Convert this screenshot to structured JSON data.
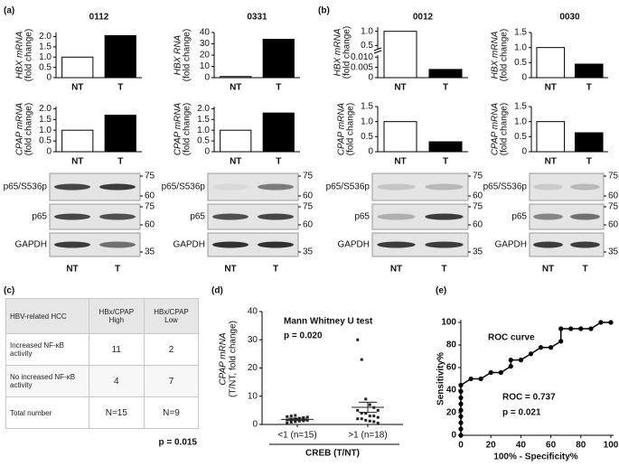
{
  "panels": [
    "(a)",
    "(b)",
    "(c)",
    "(d)",
    "(e)"
  ],
  "chart_data": [
    {
      "type": "bar",
      "title": "0112",
      "ylabel": [
        "HBX mRNA",
        "(fold change)"
      ],
      "categories": [
        "NT",
        "T"
      ],
      "values": [
        1,
        2.05
      ],
      "colors": [
        "#ffffff",
        "#000000"
      ],
      "ylim": [
        0,
        2.2
      ],
      "yticks": [
        0,
        0.5,
        {
          "value": 1,
          "label": "1.0"
        },
        1.5,
        {
          "value": 2,
          "label": "2.0"
        }
      ]
    },
    {
      "type": "bar",
      "title": "0331",
      "ylabel": [
        "HBX RNA",
        "(fold change)"
      ],
      "categories": [
        "NT",
        "T"
      ],
      "values": [
        1,
        34
      ],
      "colors": [
        "#ffffff",
        "#000000"
      ],
      "ylim": [
        0,
        40
      ],
      "yticks": [
        0,
        10,
        20,
        30,
        40
      ]
    },
    {
      "type": "bar",
      "ylabel": [
        "CPAP mRNA",
        "(fold change)"
      ],
      "categories": [
        "NT",
        "T"
      ],
      "values": [
        1,
        1.7
      ],
      "colors": [
        "#ffffff",
        "#000000"
      ],
      "ylim": [
        0,
        2.1
      ],
      "yticks": [
        0,
        0.5,
        {
          "value": 1,
          "label": "1.0"
        },
        1.5,
        {
          "value": 2,
          "label": "2.0"
        }
      ]
    },
    {
      "type": "bar",
      "ylabel": [
        "CPAP mRNA",
        "(fold change)"
      ],
      "categories": [
        "NT",
        "T"
      ],
      "values": [
        1,
        1.8
      ],
      "colors": [
        "#ffffff",
        "#000000"
      ],
      "ylim": [
        0,
        2.1
      ],
      "yticks": [
        0,
        0.5,
        {
          "value": 1,
          "label": "1.0"
        },
        1.5,
        {
          "value": 2,
          "label": "2.0"
        }
      ]
    },
    {
      "type": "bar",
      "title": "0012",
      "ylabel": [
        "HBX mRNA",
        "(fold change)"
      ],
      "categories": [
        "NT",
        "T"
      ],
      "values": [
        1,
        0.004
      ],
      "colors": [
        "#ffffff",
        "#000000"
      ],
      "segments": [
        {
          "ylim": [
            0,
            0.011
          ],
          "yticks": [
            0,
            0.005,
            {
              "value": 0.01,
              "label": "0.010"
            }
          ]
        },
        {
          "ylim": [
            0.35,
            1.15
          ],
          "yticks": [
            0.5,
            {
              "value": 1,
              "label": "1.0"
            }
          ]
        }
      ]
    },
    {
      "type": "bar",
      "title": "0030",
      "ylabel": [
        "HBX mRNA",
        "(fold change)"
      ],
      "categories": [
        "NT",
        "T"
      ],
      "values": [
        1,
        0.45
      ],
      "colors": [
        "#ffffff",
        "#000000"
      ],
      "ylim": [
        0,
        1.5
      ],
      "yticks": [
        0,
        0.5,
        {
          "value": 1,
          "label": "1.0"
        },
        1.5
      ]
    },
    {
      "type": "bar",
      "ylabel": [
        "CPAP mRNA",
        "(fold change)"
      ],
      "categories": [
        "NT",
        "T"
      ],
      "values": [
        1,
        0.33
      ],
      "colors": [
        "#ffffff",
        "#000000"
      ],
      "ylim": [
        0,
        1.5
      ],
      "yticks": [
        0,
        0.5,
        {
          "value": 1,
          "label": "1.0"
        },
        1.5
      ]
    },
    {
      "type": "bar",
      "ylabel": [
        "CPAP mRNA",
        "(fold change)"
      ],
      "categories": [
        "NT",
        "T"
      ],
      "values": [
        1,
        0.63
      ],
      "colors": [
        "#ffffff",
        "#000000"
      ],
      "ylim": [
        0,
        1.5
      ],
      "yticks": [
        0,
        0.5,
        {
          "value": 1,
          "label": "1.0"
        },
        1.5
      ]
    },
    {
      "type": "dotplot",
      "annotations": [
        "Mann Whitney U test",
        "p = 0.020"
      ],
      "ylabel": [
        "CPAP mRNA",
        "(T/NT, fold change)"
      ],
      "xlabel": "CREB (T/NT)",
      "categories": [
        "<1 (n=15)",
        ">1 (n=18)"
      ],
      "groups": [
        [
          0.5,
          0.8,
          1.0,
          1.2,
          1.3,
          1.5,
          1.6,
          1.8,
          2.0,
          2.2,
          2.4,
          2.6,
          2.8,
          3.0,
          3.2
        ],
        [
          30,
          23,
          9,
          7,
          6,
          5,
          5,
          4,
          4,
          3,
          3,
          2.5,
          2,
          2,
          1.5,
          1.2,
          1,
          0.5
        ]
      ],
      "means": [
        1.8,
        6.1
      ],
      "errors": [
        0.4,
        1.8
      ],
      "color": "#222222",
      "ylim": [
        0,
        40
      ],
      "yticks": [
        0,
        10,
        20,
        30,
        40
      ]
    },
    {
      "type": "line",
      "title": "ROC curve",
      "annotations": [
        "ROC = 0.737",
        "p = 0.021"
      ],
      "xlabel": "100% - Specificity%",
      "ylabel": "Sensitivity%",
      "x": [
        0,
        0,
        0,
        0,
        0,
        0,
        0,
        0,
        0,
        6.7,
        13.3,
        20,
        26.7,
        33.3,
        33.3,
        40,
        46.7,
        53.3,
        60,
        66.7,
        66.7,
        73.3,
        80,
        86.7,
        93.3,
        100
      ],
      "y": [
        0,
        5.6,
        11.1,
        16.7,
        22.2,
        27.8,
        33.3,
        38.9,
        44.4,
        50,
        50,
        55.6,
        55.6,
        61.1,
        66.7,
        66.7,
        72.2,
        77.8,
        77.8,
        83.3,
        94.4,
        94.4,
        94.4,
        94.4,
        100,
        100
      ],
      "color": "#000000",
      "xlim": [
        0,
        100
      ],
      "ylim": [
        0,
        100
      ],
      "xticks": [
        0,
        20,
        40,
        60,
        80,
        100
      ],
      "yticks": [
        0,
        20,
        40,
        60,
        80,
        100
      ]
    }
  ],
  "blots": [
    {
      "rows": [
        {
          "label": "p65/S536p",
          "markers": [
            "75",
            "60"
          ]
        },
        {
          "label": "p65",
          "markers": [
            "75",
            "60"
          ]
        },
        {
          "label": "GAPDH",
          "markers": [
            "35"
          ]
        }
      ],
      "lanes": [
        "NT",
        "T"
      ]
    },
    {
      "rows": [
        {
          "label": "p65/S536p",
          "markers": [
            "75",
            "60"
          ]
        },
        {
          "label": "p65",
          "markers": [
            "75",
            "60"
          ]
        },
        {
          "label": "GAPDH",
          "markers": [
            "35"
          ]
        }
      ],
      "lanes": [
        "NT",
        "T"
      ]
    },
    {
      "rows": [
        {
          "label": "p65/S536p",
          "markers": [
            "75",
            "60"
          ]
        },
        {
          "label": "p65",
          "markers": [
            "75",
            "60"
          ]
        },
        {
          "label": "GAPDH",
          "markers": [
            "35"
          ]
        }
      ],
      "lanes": [
        "NT",
        "T"
      ]
    },
    {
      "rows": [
        {
          "label": "p65/S536p",
          "markers": [
            "75",
            "60"
          ]
        },
        {
          "label": "p65",
          "markers": [
            "75",
            "60"
          ]
        },
        {
          "label": "GAPDH",
          "markers": [
            "35"
          ]
        }
      ],
      "lanes": [
        "NT",
        "T"
      ]
    }
  ],
  "table": {
    "header": [
      "HBV-related HCC",
      "HBx/CPAP High",
      "HBx/CPAP Low"
    ],
    "rows": [
      [
        "Increased NF-κB activity",
        11,
        2
      ],
      [
        "No increased NF-κB activity",
        4,
        7
      ],
      [
        "Total number",
        "N=15",
        "N=9"
      ]
    ],
    "p": "p = 0.015"
  }
}
